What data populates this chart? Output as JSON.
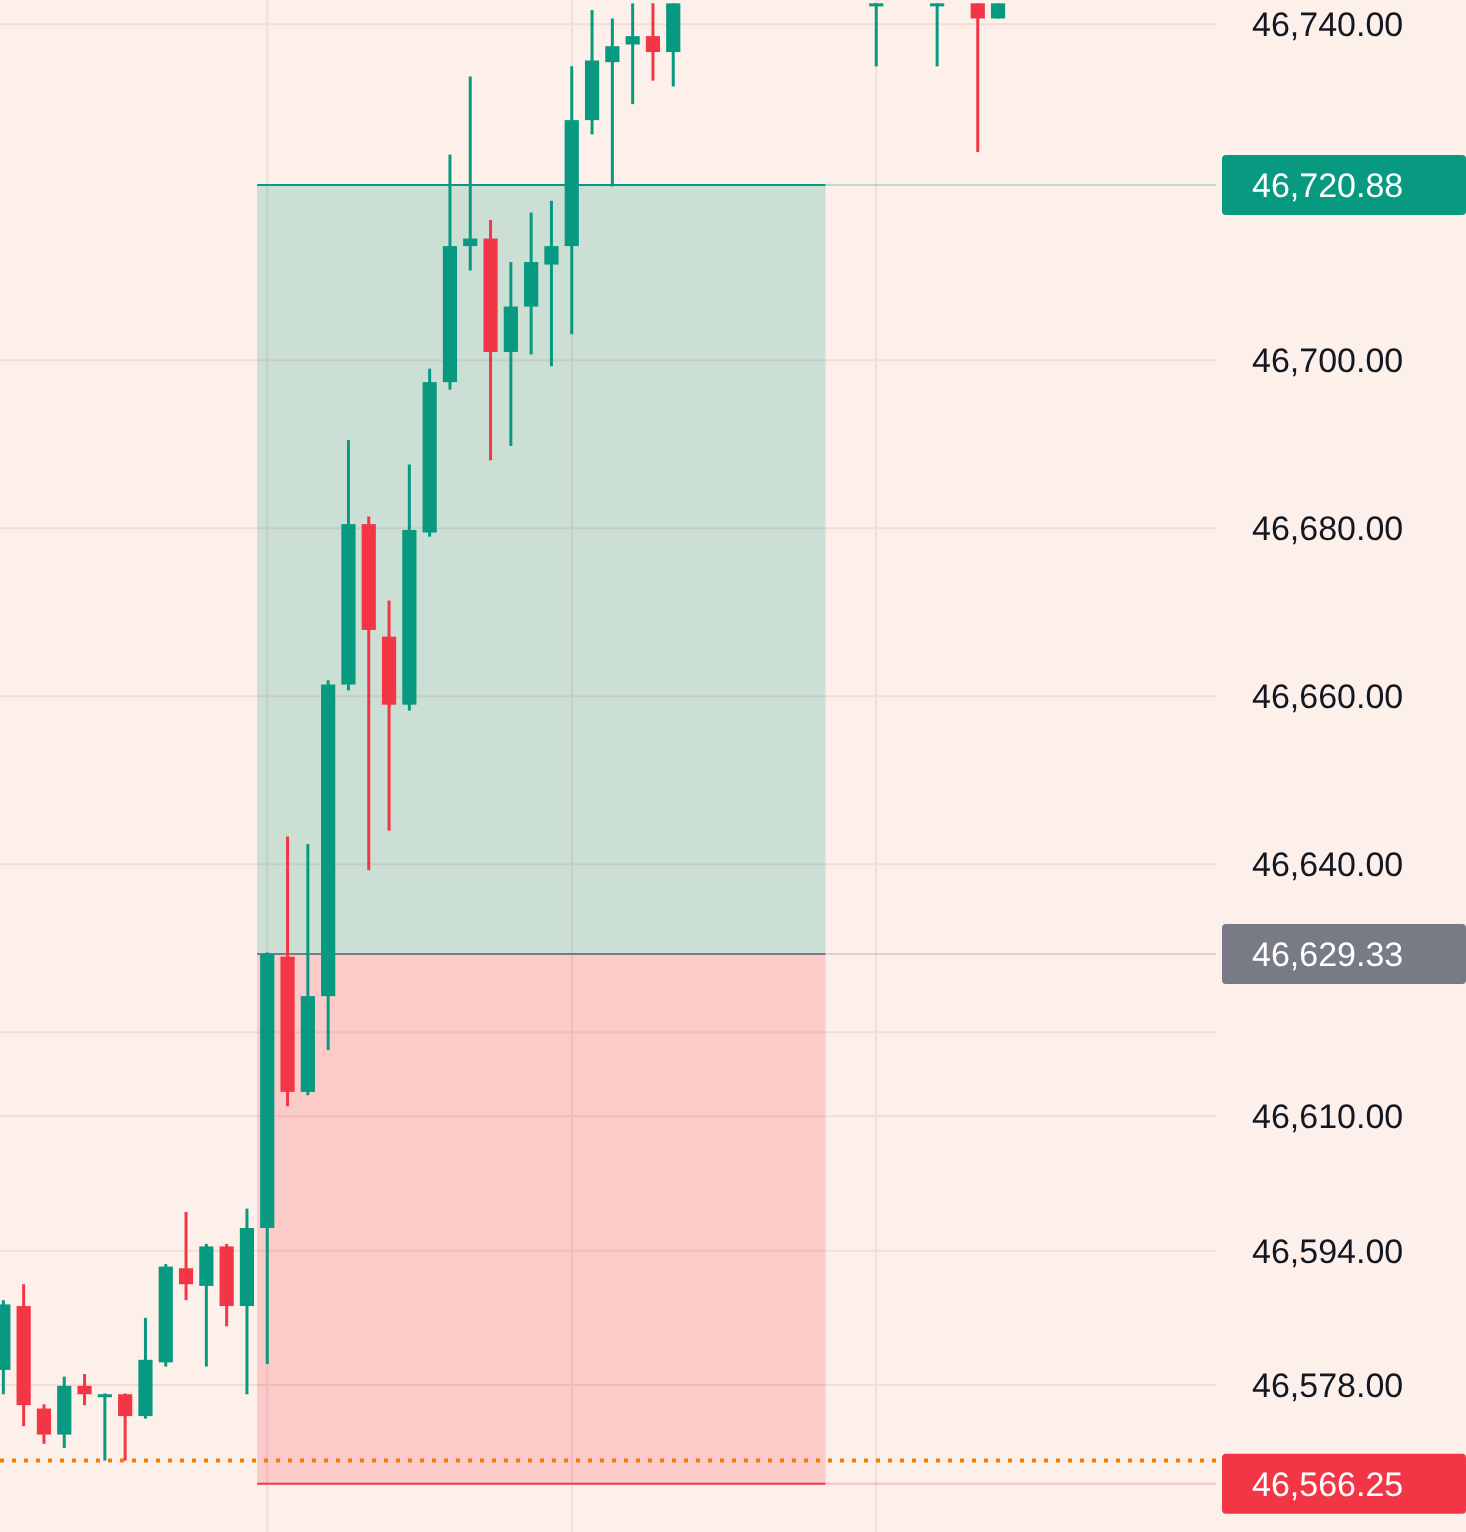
{
  "chart_data": {
    "type": "candlestick",
    "categories": [
      null,
      null,
      null,
      null,
      null,
      null,
      null,
      null,
      null,
      null,
      null,
      null,
      null,
      null,
      null,
      null,
      null,
      null,
      null,
      null,
      null,
      null,
      null,
      null,
      null,
      null,
      null,
      null,
      null,
      null,
      null,
      null,
      null,
      null,
      null,
      null,
      null,
      null,
      null,
      null,
      null,
      null,
      null,
      null,
      null,
      null,
      null,
      null,
      null,
      null,
      null,
      null,
      null,
      null,
      null,
      null,
      null,
      null,
      null,
      null
    ],
    "ohlc": [
      [
        46579.8,
        46588.1,
        46576.9,
        46587.6
      ],
      [
        46587.4,
        46590.0,
        46573.1,
        46575.6
      ],
      [
        46575.2,
        46575.7,
        46571.0,
        46572.1
      ],
      [
        46572.1,
        46579.0,
        46570.5,
        46577.9
      ],
      [
        46577.9,
        46579.3,
        46575.6,
        46576.9
      ],
      [
        46576.9,
        46577.0,
        46569.0,
        46576.9
      ],
      [
        46576.9,
        46577.0,
        46569.0,
        46574.3
      ],
      [
        46574.3,
        46586.0,
        46574.0,
        46581.0
      ],
      [
        46580.7,
        46592.4,
        46580.2,
        46592.1
      ],
      [
        46591.9,
        46598.6,
        46588.1,
        46590.0
      ],
      [
        46589.8,
        46594.8,
        46580.2,
        46594.5
      ],
      [
        46594.5,
        46594.8,
        46585.0,
        46587.4
      ],
      [
        46587.4,
        46599.0,
        46576.9,
        46596.7
      ],
      [
        46596.7,
        46629.5,
        46580.5,
        46629.3
      ],
      [
        46629.0,
        46643.3,
        46611.2,
        46612.9
      ],
      [
        46612.9,
        46642.4,
        46612.5,
        46624.3
      ],
      [
        46624.3,
        46661.9,
        46617.9,
        46661.4
      ],
      [
        46661.4,
        46690.5,
        46660.7,
        46680.5
      ],
      [
        46680.5,
        46681.4,
        46639.3,
        46667.9
      ],
      [
        46667.1,
        46671.4,
        46644.0,
        46659.0
      ],
      [
        46659.0,
        46687.6,
        46658.3,
        46679.8
      ],
      [
        46679.5,
        46699.0,
        46679.0,
        46697.4
      ],
      [
        46697.4,
        46724.5,
        46696.5,
        46713.6
      ],
      [
        46713.6,
        46733.8,
        46710.7,
        46714.5
      ],
      [
        46714.5,
        46716.7,
        46688.1,
        46701.0
      ],
      [
        46701.0,
        46711.7,
        46689.8,
        46706.4
      ],
      [
        46706.4,
        46717.6,
        46700.7,
        46711.7
      ],
      [
        46711.4,
        46719.0,
        46699.3,
        46713.6
      ],
      [
        46713.6,
        46735.0,
        46703.1,
        46728.6
      ],
      [
        46728.6,
        46741.7,
        46726.9,
        46735.7
      ],
      [
        46735.5,
        46740.7,
        46720.7,
        46737.4
      ],
      [
        46737.6,
        46742.5,
        46730.5,
        46738.6
      ],
      [
        46738.6,
        46742.5,
        46733.3,
        46736.7
      ],
      [
        46736.7,
        46742.5,
        46732.6,
        46742.5
      ],
      null,
      null,
      null,
      null,
      null,
      null,
      null,
      null,
      null,
      [
        46742.5,
        46742.5,
        46735.0,
        46742.5
      ],
      null,
      null,
      [
        46742.5,
        46742.5,
        46735.0,
        46742.5
      ],
      null,
      [
        46742.5,
        46742.5,
        46724.8,
        46740.7
      ],
      [
        46740.7,
        46742.5,
        46740.7,
        46742.5
      ],
      null,
      null,
      null,
      null,
      null,
      null,
      null,
      null,
      null,
      null
    ],
    "ylim": [
      46560.5,
      46742.9
    ],
    "yticks": [
      {
        "value": 46740,
        "label": "46,740.00"
      },
      {
        "value": 46700,
        "label": "46,700.00"
      },
      {
        "value": 46680,
        "label": "46,680.00"
      },
      {
        "value": 46660,
        "label": "46,660.00"
      },
      {
        "value": 46640,
        "label": "46,640.00"
      },
      {
        "value": 46620,
        "label": null
      },
      {
        "value": 46610,
        "label": "46,610.00"
      },
      {
        "value": 46594,
        "label": "46,594.00"
      },
      {
        "value": 46578,
        "label": "46,578.00"
      }
    ],
    "grid": true,
    "tick_labels": "y",
    "bands": [
      {
        "axis": "y",
        "from": 46629.33,
        "to": 46720.88,
        "color": "#089981"
      },
      {
        "axis": "y",
        "from": 46566.25,
        "to": 46629.33,
        "color": "#f23645"
      }
    ],
    "ref_lines": [
      {
        "axis": "y",
        "value": 46569,
        "color": "#f57c00",
        "line_style": "dotted"
      },
      {
        "axis": "y",
        "value": 46720.88,
        "label": "46,720.88",
        "color": "#089981"
      },
      {
        "axis": "y",
        "value": 46629.33,
        "label": "46,629.33",
        "color": "#787b86"
      },
      {
        "axis": "y",
        "value": 46566.25,
        "label": "46,566.25",
        "color": "#f23645"
      }
    ]
  }
}
